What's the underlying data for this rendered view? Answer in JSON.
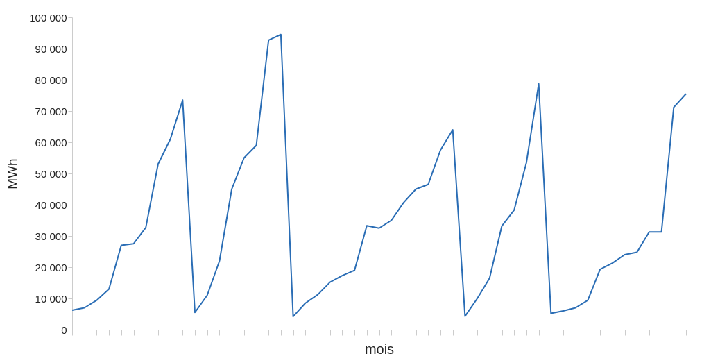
{
  "chart_data": {
    "type": "line",
    "xlabel": "mois",
    "ylabel": "MWh",
    "categories": [
      null,
      null,
      null,
      null,
      null,
      null,
      null,
      null,
      null,
      null,
      null,
      null,
      null,
      null,
      null,
      null,
      null,
      null,
      null,
      null,
      null,
      null,
      null,
      null,
      null,
      null,
      null,
      null,
      null,
      null,
      null,
      null,
      null,
      null,
      null,
      null,
      null,
      null,
      null,
      null,
      null,
      null,
      null,
      null,
      null,
      null,
      null,
      null,
      null,
      null,
      null
    ],
    "series": [
      {
        "color": "#2a6db5",
        "values": [
          6200,
          7000,
          9400,
          13000,
          27000,
          27500,
          32700,
          53000,
          61000,
          73500,
          5500,
          11000,
          22000,
          45000,
          55000,
          59000,
          92700,
          94500,
          4200,
          8500,
          11200,
          15200,
          17300,
          19000,
          33300,
          32500,
          35000,
          40700,
          45000,
          46500,
          57500,
          64000,
          4300,
          10000,
          16500,
          33200,
          38300,
          53500,
          78700,
          5200,
          6000,
          7000,
          9400,
          19300,
          21300,
          24000,
          24800,
          31300,
          31300,
          71200,
          75500
        ]
      }
    ],
    "ylim": [
      0,
      100000
    ],
    "yticks": [
      {
        "value": 0,
        "label": "0"
      },
      {
        "value": 10000,
        "label": "10 000"
      },
      {
        "value": 20000,
        "label": "20 000"
      },
      {
        "value": 30000,
        "label": "30 000"
      },
      {
        "value": 40000,
        "label": "40 000"
      },
      {
        "value": 50000,
        "label": "50 000"
      },
      {
        "value": 60000,
        "label": "60 000"
      },
      {
        "value": 70000,
        "label": "70 000"
      },
      {
        "value": 80000,
        "label": "80 000"
      },
      {
        "value": 90000,
        "label": "90 000"
      },
      {
        "value": 100000,
        "label": "100 000"
      }
    ],
    "tick_labels": "y",
    "grid": false,
    "legend": false,
    "marker": "none",
    "line_style": "solid"
  }
}
